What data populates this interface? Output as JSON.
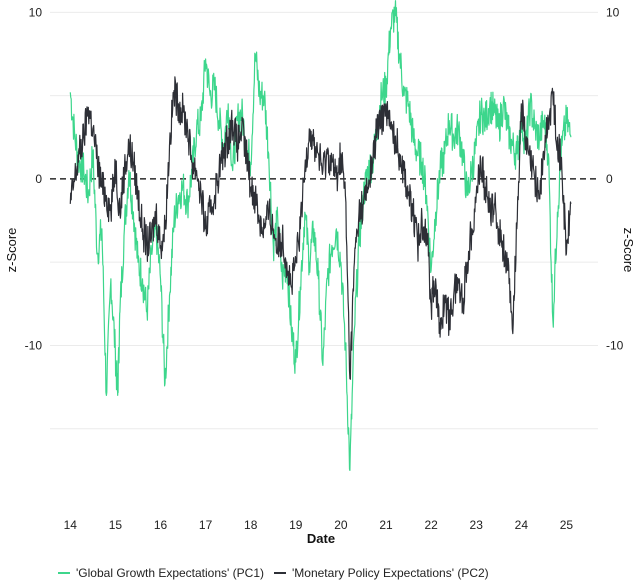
{
  "chart_data": {
    "type": "line",
    "title": "",
    "xlabel": "Date",
    "ylabel_left": "z-Score",
    "ylabel_right": "z-Score",
    "x_ticks": [
      "14",
      "15",
      "16",
      "17",
      "18",
      "19",
      "20",
      "21",
      "22",
      "23",
      "24",
      "25"
    ],
    "x_tick_values": [
      14,
      15,
      16,
      17,
      18,
      19,
      20,
      21,
      22,
      23,
      24,
      25
    ],
    "xlim": [
      13.55,
      25.7
    ],
    "y_ticks": [
      10,
      0,
      -10
    ],
    "y_tick_labels": [
      "10",
      "0",
      "-10"
    ],
    "ylim": [
      -19.4,
      10.5
    ],
    "y_gridlines": [
      10,
      5,
      0,
      -5,
      -10,
      -15
    ],
    "reference_line": {
      "y": 0,
      "style": "dashed"
    },
    "legend_position": "bottom-left",
    "grid": true,
    "series": [
      {
        "name": "'Global Growth Expectations' (PC1)",
        "color": "#3dd68c",
        "points": [
          [
            14.0,
            5.2
          ],
          [
            14.1,
            2.5
          ],
          [
            14.2,
            1.0
          ],
          [
            14.3,
            0.5
          ],
          [
            14.4,
            -1.0
          ],
          [
            14.5,
            1.5
          ],
          [
            14.6,
            -4.5
          ],
          [
            14.7,
            -3.0
          ],
          [
            14.8,
            -13.0
          ],
          [
            14.9,
            -6.0
          ],
          [
            15.0,
            -10.5
          ],
          [
            15.05,
            -13.0
          ],
          [
            15.1,
            -8.0
          ],
          [
            15.2,
            -3.0
          ],
          [
            15.3,
            0.5
          ],
          [
            15.4,
            -2.0
          ],
          [
            15.5,
            -5.0
          ],
          [
            15.6,
            -6.0
          ],
          [
            15.7,
            -8.0
          ],
          [
            15.8,
            -4.5
          ],
          [
            15.9,
            -3.0
          ],
          [
            16.0,
            -6.0
          ],
          [
            16.1,
            -12.3
          ],
          [
            16.2,
            -7.0
          ],
          [
            16.3,
            -2.5
          ],
          [
            16.4,
            -1.0
          ],
          [
            16.5,
            -0.5
          ],
          [
            16.6,
            -1.5
          ],
          [
            16.7,
            0.5
          ],
          [
            16.8,
            3.0
          ],
          [
            16.9,
            3.5
          ],
          [
            17.0,
            7.2
          ],
          [
            17.1,
            5.0
          ],
          [
            17.2,
            5.5
          ],
          [
            17.3,
            3.5
          ],
          [
            17.4,
            2.0
          ],
          [
            17.5,
            4.5
          ],
          [
            17.6,
            0.5
          ],
          [
            17.7,
            3.5
          ],
          [
            17.8,
            4.0
          ],
          [
            17.9,
            2.0
          ],
          [
            18.0,
            1.0
          ],
          [
            18.1,
            7.5
          ],
          [
            18.2,
            5.0
          ],
          [
            18.3,
            5.0
          ],
          [
            18.4,
            1.5
          ],
          [
            18.5,
            -4.0
          ],
          [
            18.6,
            -2.5
          ],
          [
            18.7,
            -6.0
          ],
          [
            18.8,
            -5.0
          ],
          [
            18.9,
            -9.0
          ],
          [
            19.0,
            -11.0
          ],
          [
            19.1,
            -6.5
          ],
          [
            19.2,
            -2.0
          ],
          [
            19.3,
            -5.0
          ],
          [
            19.4,
            -3.0
          ],
          [
            19.5,
            -6.0
          ],
          [
            19.6,
            -11.2
          ],
          [
            19.7,
            -6.0
          ],
          [
            19.8,
            -4.0
          ],
          [
            19.9,
            -3.0
          ],
          [
            20.0,
            -5.0
          ],
          [
            20.1,
            -10.0
          ],
          [
            20.2,
            -17.5
          ],
          [
            20.3,
            -9.0
          ],
          [
            20.4,
            -4.0
          ],
          [
            20.5,
            -1.0
          ],
          [
            20.6,
            0.5
          ],
          [
            20.7,
            1.0
          ],
          [
            20.8,
            3.0
          ],
          [
            20.9,
            5.0
          ],
          [
            21.0,
            5.5
          ],
          [
            21.1,
            9.0
          ],
          [
            21.2,
            10.0
          ],
          [
            21.3,
            7.5
          ],
          [
            21.4,
            5.0
          ],
          [
            21.5,
            4.5
          ],
          [
            21.6,
            2.5
          ],
          [
            21.7,
            1.5
          ],
          [
            21.8,
            1.0
          ],
          [
            21.9,
            -1.0
          ],
          [
            22.0,
            -5.5
          ],
          [
            22.1,
            -2.0
          ],
          [
            22.2,
            0.5
          ],
          [
            22.3,
            1.5
          ],
          [
            22.4,
            3.5
          ],
          [
            22.5,
            2.5
          ],
          [
            22.6,
            3.0
          ],
          [
            22.7,
            1.5
          ],
          [
            22.8,
            -1.0
          ],
          [
            22.9,
            0.5
          ],
          [
            23.0,
            2.0
          ],
          [
            23.1,
            4.0
          ],
          [
            23.2,
            3.5
          ],
          [
            23.3,
            4.5
          ],
          [
            23.4,
            4.0
          ],
          [
            23.5,
            3.0
          ],
          [
            23.6,
            4.5
          ],
          [
            23.7,
            3.0
          ],
          [
            23.8,
            2.0
          ],
          [
            23.9,
            1.5
          ],
          [
            24.0,
            3.5
          ],
          [
            24.1,
            2.0
          ],
          [
            24.2,
            4.5
          ],
          [
            24.3,
            3.0
          ],
          [
            24.4,
            2.5
          ],
          [
            24.5,
            3.5
          ],
          [
            24.6,
            1.5
          ],
          [
            24.7,
            -8.5
          ],
          [
            24.8,
            -2.0
          ],
          [
            24.9,
            2.0
          ],
          [
            25.0,
            3.5
          ],
          [
            25.1,
            2.5
          ]
        ]
      },
      {
        "name": "'Monetary Policy Expectations' (PC2)",
        "color": "#2d2f36",
        "points": [
          [
            14.0,
            -1.5
          ],
          [
            14.1,
            0.0
          ],
          [
            14.2,
            1.5
          ],
          [
            14.3,
            2.5
          ],
          [
            14.4,
            4.3
          ],
          [
            14.5,
            3.0
          ],
          [
            14.6,
            1.0
          ],
          [
            14.7,
            -0.5
          ],
          [
            14.8,
            -1.0
          ],
          [
            14.9,
            -2.0
          ],
          [
            15.0,
            1.0
          ],
          [
            15.1,
            -2.0
          ],
          [
            15.2,
            0.5
          ],
          [
            15.3,
            2.0
          ],
          [
            15.4,
            1.0
          ],
          [
            15.5,
            -1.0
          ],
          [
            15.6,
            -3.0
          ],
          [
            15.7,
            -4.0
          ],
          [
            15.8,
            -3.5
          ],
          [
            15.9,
            -2.0
          ],
          [
            16.0,
            -4.0
          ],
          [
            16.1,
            -3.0
          ],
          [
            16.2,
            2.0
          ],
          [
            16.3,
            5.3
          ],
          [
            16.4,
            4.5
          ],
          [
            16.5,
            4.0
          ],
          [
            16.6,
            3.0
          ],
          [
            16.7,
            1.0
          ],
          [
            16.8,
            0.5
          ],
          [
            16.9,
            -1.0
          ],
          [
            17.0,
            -3.0
          ],
          [
            17.1,
            -2.0
          ],
          [
            17.2,
            -1.0
          ],
          [
            17.3,
            0.5
          ],
          [
            17.4,
            1.5
          ],
          [
            17.5,
            2.5
          ],
          [
            17.6,
            3.5
          ],
          [
            17.7,
            2.0
          ],
          [
            17.8,
            3.0
          ],
          [
            17.9,
            1.5
          ],
          [
            18.0,
            -0.5
          ],
          [
            18.1,
            -1.0
          ],
          [
            18.2,
            -2.5
          ],
          [
            18.3,
            -3.0
          ],
          [
            18.4,
            -2.0
          ],
          [
            18.5,
            -3.0
          ],
          [
            18.6,
            -4.0
          ],
          [
            18.7,
            -3.5
          ],
          [
            18.8,
            -5.0
          ],
          [
            18.9,
            -6.5
          ],
          [
            19.0,
            -5.0
          ],
          [
            19.1,
            -3.0
          ],
          [
            19.2,
            0.5
          ],
          [
            19.3,
            3.0
          ],
          [
            19.4,
            2.0
          ],
          [
            19.5,
            1.5
          ],
          [
            19.6,
            0.5
          ],
          [
            19.7,
            1.5
          ],
          [
            19.8,
            1.0
          ],
          [
            19.9,
            0.0
          ],
          [
            20.0,
            1.5
          ],
          [
            20.1,
            -1.0
          ],
          [
            20.2,
            -12.0
          ],
          [
            20.3,
            -5.0
          ],
          [
            20.4,
            -2.0
          ],
          [
            20.5,
            -1.5
          ],
          [
            20.6,
            -0.5
          ],
          [
            20.7,
            1.0
          ],
          [
            20.8,
            3.0
          ],
          [
            20.9,
            3.5
          ],
          [
            21.0,
            4.5
          ],
          [
            21.1,
            3.0
          ],
          [
            21.2,
            2.5
          ],
          [
            21.3,
            1.5
          ],
          [
            21.4,
            0.5
          ],
          [
            21.5,
            -1.0
          ],
          [
            21.6,
            -2.0
          ],
          [
            21.7,
            -4.0
          ],
          [
            21.8,
            -2.5
          ],
          [
            21.9,
            -3.0
          ],
          [
            22.0,
            -7.5
          ],
          [
            22.1,
            -6.0
          ],
          [
            22.2,
            -9.5
          ],
          [
            22.3,
            -7.0
          ],
          [
            22.4,
            -8.5
          ],
          [
            22.5,
            -7.0
          ],
          [
            22.6,
            -6.0
          ],
          [
            22.7,
            -7.5
          ],
          [
            22.8,
            -5.0
          ],
          [
            22.9,
            -3.0
          ],
          [
            23.0,
            -1.0
          ],
          [
            23.1,
            1.0
          ],
          [
            23.2,
            -0.5
          ],
          [
            23.3,
            -2.0
          ],
          [
            23.4,
            -1.5
          ],
          [
            23.5,
            -3.0
          ],
          [
            23.6,
            -4.0
          ],
          [
            23.7,
            -5.5
          ],
          [
            23.8,
            -9.0
          ],
          [
            23.9,
            -3.0
          ],
          [
            24.0,
            4.5
          ],
          [
            24.1,
            2.0
          ],
          [
            24.2,
            1.0
          ],
          [
            24.3,
            0.0
          ],
          [
            24.4,
            -1.0
          ],
          [
            24.5,
            1.5
          ],
          [
            24.6,
            3.5
          ],
          [
            24.7,
            5.0
          ],
          [
            24.8,
            2.5
          ],
          [
            24.9,
            0.5
          ],
          [
            25.0,
            -4.5
          ],
          [
            25.1,
            -1.5
          ]
        ]
      }
    ]
  }
}
